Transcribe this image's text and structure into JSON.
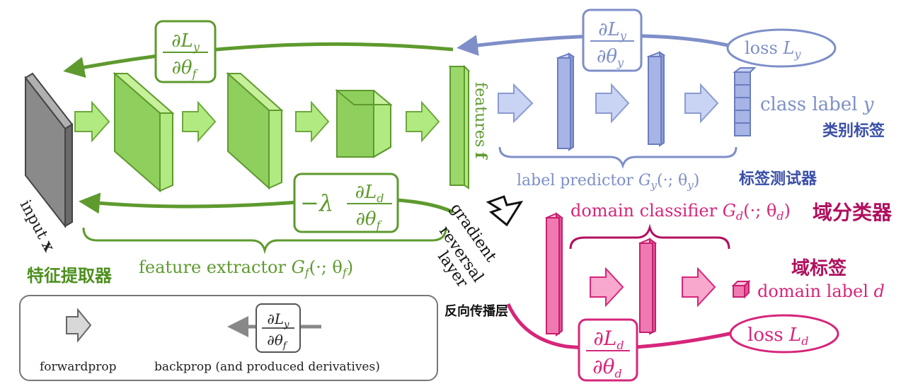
{
  "input": {
    "label": "input",
    "var": "x"
  },
  "features": {
    "label": "features",
    "var": "f"
  },
  "gradient_reversal": {
    "line1": "gradient",
    "line2": "reversal",
    "line3": "layer"
  },
  "feature_extractor": {
    "label": "feature extractor",
    "math": "G",
    "sub": "f",
    "args": "(·; θ",
    "args_sub": "f",
    "close": ")",
    "zh": "特征提取器"
  },
  "label_predictor": {
    "label": "label predictor",
    "math": "G",
    "sub": "y",
    "args": "(·; θ",
    "args_sub": "y",
    "close": ")",
    "zh": "标签测试器"
  },
  "domain_classifier": {
    "label": "domain classifier",
    "math": "G",
    "sub": "d",
    "args": "(·; θ",
    "args_sub": "d",
    "close": ")",
    "zh": "域分类器"
  },
  "class_label": {
    "label": "class label",
    "var": "y",
    "zh": "类别标签"
  },
  "domain_label": {
    "label": "domain label",
    "var": "d",
    "zh": "域标签"
  },
  "loss_y": {
    "label": "loss",
    "var": "L",
    "sub": "y"
  },
  "loss_d": {
    "label": "loss",
    "var": "L",
    "sub": "d"
  },
  "grad_y_f": {
    "num": "∂L",
    "num_sub": "y",
    "den": "∂θ",
    "den_sub": "f"
  },
  "grad_y_y": {
    "num": "∂L",
    "num_sub": "y",
    "den": "∂θ",
    "den_sub": "y"
  },
  "grad_d_f": {
    "prefix": "−λ",
    "num": "∂L",
    "num_sub": "d",
    "den": "∂θ",
    "den_sub": "f"
  },
  "grad_d_d": {
    "num": "∂L",
    "num_sub": "d",
    "den": "∂θ",
    "den_sub": "d"
  },
  "reverse_prop_zh": "反向传播层",
  "legend": {
    "forward": "forwardprop",
    "backward": "backprop (and produced derivatives)",
    "grad": {
      "num": "∂L",
      "num_sub": "y",
      "den": "∂θ",
      "den_sub": "f"
    }
  },
  "colors": {
    "green_dark": "#5e9a2e",
    "green_fill": "#9ad86a",
    "green_light": "#c6f09a",
    "blue_dark": "#7e8fc8",
    "blue_fill": "#a6b4e6",
    "blue_light": "#c9d3f4",
    "pink_dark": "#d6267a",
    "pink_fill": "#ef7ab2",
    "pink_light": "#fbc3dd",
    "gray_dark": "#555555",
    "gray_fill": "#8a8a8a"
  }
}
